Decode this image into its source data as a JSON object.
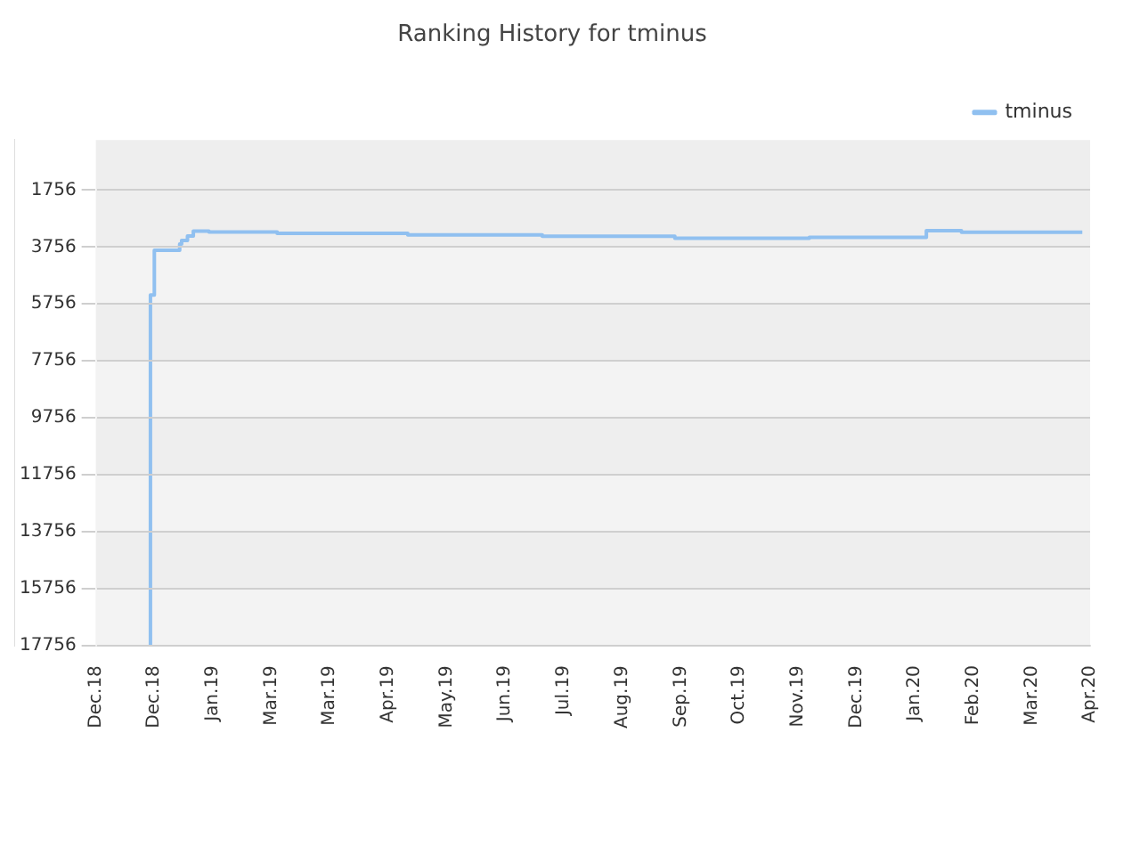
{
  "chart_data": {
    "type": "step",
    "title": "Ranking History for tminus",
    "series": [
      {
        "name": "tminus",
        "color": "#90c0f0",
        "x": [
          "2018-12-29",
          "2018-12-31",
          "2019-01-13",
          "2019-01-14",
          "2019-01-17",
          "2019-01-20",
          "2019-01-28",
          "2019-03-04",
          "2019-05-10",
          "2019-07-18",
          "2019-09-24",
          "2019-12-02",
          "2020-01-31",
          "2020-02-18",
          "2020-03-20",
          "2020-04-20"
        ],
        "values": [
          17756,
          5440,
          3870,
          3650,
          3530,
          3370,
          3200,
          3230,
          3280,
          3330,
          3380,
          3450,
          3420,
          3180,
          3240,
          3240
        ]
      }
    ],
    "ylim": [
      17756,
      0
    ],
    "yticks": [
      1756,
      3756,
      5756,
      7756,
      9756,
      11756,
      13756,
      15756,
      17756
    ],
    "xlim": [
      "2018-12-01",
      "2020-04-24"
    ],
    "xticks": [
      {
        "value": "2018-12-01",
        "label": "Dec.18"
      },
      {
        "value": "2018-12-31",
        "label": "Dec.18"
      },
      {
        "value": "2019-01-30",
        "label": "Jan.19"
      },
      {
        "value": "2019-03-01",
        "label": "Mar.19"
      },
      {
        "value": "2019-03-31",
        "label": "Mar.19"
      },
      {
        "value": "2019-04-30",
        "label": "Apr.19"
      },
      {
        "value": "2019-05-30",
        "label": "May.19"
      },
      {
        "value": "2019-06-29",
        "label": "Jun.19"
      },
      {
        "value": "2019-07-29",
        "label": "Jul.19"
      },
      {
        "value": "2019-08-28",
        "label": "Aug.19"
      },
      {
        "value": "2019-09-27",
        "label": "Sep.19"
      },
      {
        "value": "2019-10-27",
        "label": "Oct.19"
      },
      {
        "value": "2019-11-26",
        "label": "Nov.19"
      },
      {
        "value": "2019-12-26",
        "label": "Dec.19"
      },
      {
        "value": "2020-01-25",
        "label": "Jan.20"
      },
      {
        "value": "2020-02-24",
        "label": "Feb.20"
      },
      {
        "value": "2020-03-25",
        "label": "Mar.20"
      },
      {
        "value": "2020-04-24",
        "label": "Apr.20"
      }
    ],
    "grid": "y",
    "legend": "top right",
    "marker": "none",
    "line_style": "solid"
  }
}
